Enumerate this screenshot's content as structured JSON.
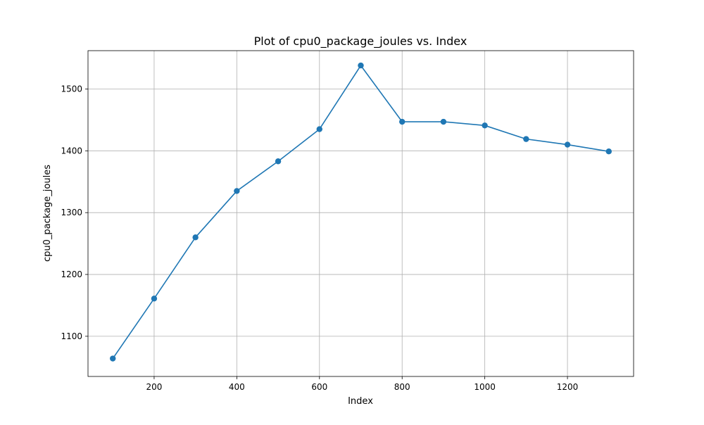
{
  "chart_data": {
    "type": "line",
    "title": "Plot of cpu0_package_joules vs. Index",
    "xlabel": "Index",
    "ylabel": "cpu0_package_joules",
    "xlim": [
      40,
      1360
    ],
    "ylim": [
      1035,
      1562
    ],
    "x_ticks": [
      200,
      400,
      600,
      800,
      1000,
      1200
    ],
    "y_ticks": [
      1100,
      1200,
      1300,
      1400,
      1500
    ],
    "grid": true,
    "marker": "circle",
    "color": "#1f77b4",
    "series": [
      {
        "x": [
          100,
          200,
          300,
          400,
          500,
          600,
          700,
          800,
          900,
          1000,
          1100,
          1200,
          1300
        ],
        "values": [
          1064,
          1161,
          1260,
          1335,
          1383,
          1435,
          1538,
          1447,
          1447,
          1441,
          1419,
          1410,
          1399
        ]
      }
    ]
  }
}
